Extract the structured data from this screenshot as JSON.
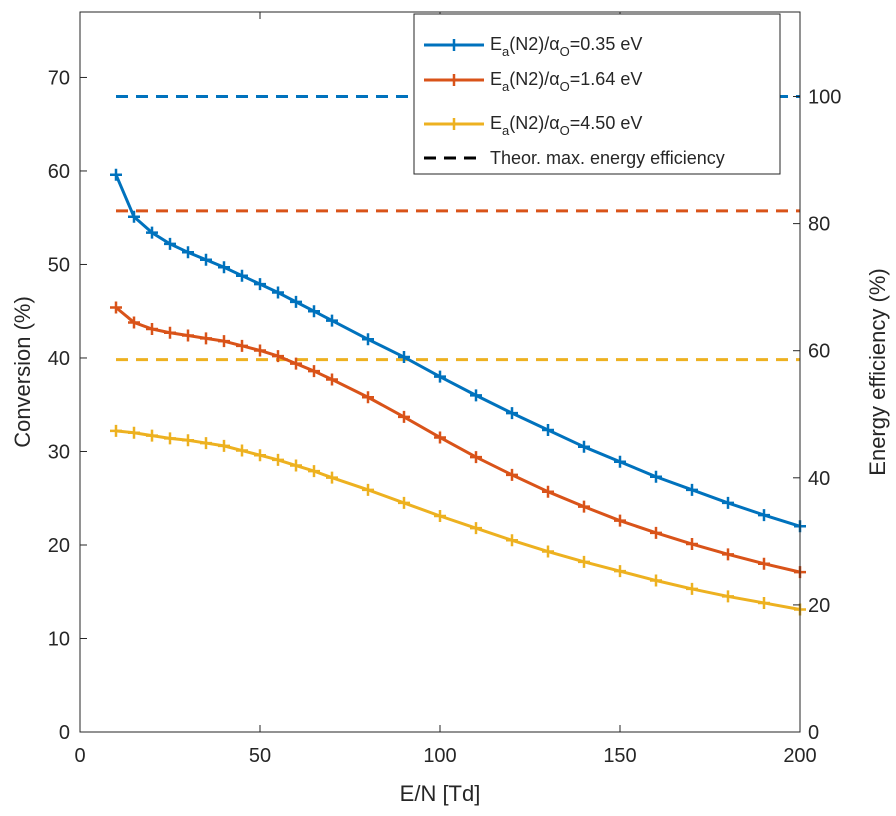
{
  "chart_data": {
    "type": "line",
    "xlabel": "E/N [Td]",
    "ylabel_left": "Conversion (%)",
    "ylabel_right": "Energy efficiency (%)",
    "xlim": [
      0,
      200
    ],
    "ylim_left": [
      0,
      77
    ],
    "ylim_right": [
      0,
      113.3
    ],
    "x_ticks": [
      0,
      50,
      100,
      150,
      200
    ],
    "y_ticks_left": [
      0,
      10,
      20,
      30,
      40,
      50,
      60,
      70
    ],
    "y_ticks_right": [
      0,
      20,
      40,
      60,
      80,
      100
    ],
    "grid": false,
    "legend_position": "top-right",
    "x": [
      10,
      15,
      20,
      25,
      30,
      35,
      40,
      45,
      50,
      55,
      60,
      65,
      70,
      80,
      90,
      100,
      110,
      120,
      130,
      140,
      150,
      160,
      170,
      180,
      190,
      200
    ],
    "series": [
      {
        "name": "E_a(N2)/α_O=0.35 eV",
        "legend": {
          "main": "E",
          "sub1": "a",
          "mid": "(N2)/",
          "greek": "α",
          "sub2": "O",
          "tail": "=0.35 eV"
        },
        "color": "#0072BD",
        "axis": "left",
        "values": [
          59.6,
          55.1,
          53.4,
          52.2,
          51.3,
          50.5,
          49.7,
          48.8,
          47.9,
          47.0,
          46.0,
          45.0,
          44.0,
          42.0,
          40.1,
          38.0,
          36.0,
          34.1,
          32.3,
          30.5,
          28.9,
          27.3,
          25.9,
          24.5,
          23.2,
          22.0
        ],
        "max_efficiency": 100
      },
      {
        "name": "E_a(N2)/α_O=1.64 eV",
        "legend": {
          "main": "E",
          "sub1": "a",
          "mid": "(N2)/",
          "greek": "α",
          "sub2": "O",
          "tail": "=1.64 eV"
        },
        "color": "#D95319",
        "axis": "left",
        "values": [
          45.4,
          43.8,
          43.1,
          42.7,
          42.4,
          42.1,
          41.8,
          41.3,
          40.8,
          40.2,
          39.4,
          38.6,
          37.7,
          35.8,
          33.7,
          31.5,
          29.4,
          27.5,
          25.7,
          24.1,
          22.6,
          21.3,
          20.1,
          19.0,
          18.0,
          17.1
        ],
        "max_efficiency": 82
      },
      {
        "name": "E_a(N2)/α_O=4.50 eV",
        "legend": {
          "main": "E",
          "sub1": "a",
          "mid": "(N2)/",
          "greek": "α",
          "sub2": "O",
          "tail": "=4.50 eV"
        },
        "color": "#EDB120",
        "axis": "left",
        "values": [
          32.2,
          32.0,
          31.7,
          31.4,
          31.2,
          30.9,
          30.6,
          30.1,
          29.6,
          29.1,
          28.5,
          27.9,
          27.2,
          25.9,
          24.5,
          23.1,
          21.8,
          20.5,
          19.3,
          18.2,
          17.2,
          16.2,
          15.3,
          14.5,
          13.8,
          13.1
        ],
        "max_efficiency": 58.6
      }
    ],
    "dashed_legend_label": "Theor. max. energy efficiency",
    "dashed_legend_color": "#000000"
  }
}
